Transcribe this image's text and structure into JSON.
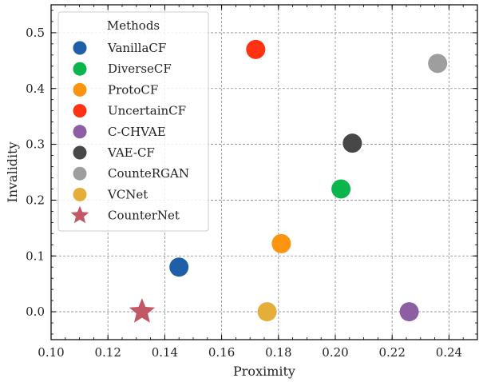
{
  "chart_data": {
    "type": "scatter",
    "title": "",
    "xlabel": "Proximity",
    "ylabel": "Invalidity",
    "xlim": [
      0.1,
      0.25
    ],
    "ylim": [
      -0.05,
      0.55
    ],
    "xticks": [
      0.1,
      0.12,
      0.14,
      0.16,
      0.18,
      0.2,
      0.22,
      0.24
    ],
    "xtick_labels": [
      "0.10",
      "0.12",
      "0.14",
      "0.16",
      "0.18",
      "0.20",
      "0.22",
      "0.24"
    ],
    "yticks": [
      0.0,
      0.1,
      0.2,
      0.3,
      0.4,
      0.5
    ],
    "ytick_labels": [
      "0.0",
      "0.1",
      "0.2",
      "0.3",
      "0.4",
      "0.5"
    ],
    "grid": true,
    "legend": {
      "title": "Methods",
      "placement": "upper-left"
    },
    "series": [
      {
        "name": "VanillaCF",
        "x": 0.145,
        "y": 0.08,
        "color": "#1f5fa8",
        "marker": "circle"
      },
      {
        "name": "DiverseCF",
        "x": 0.202,
        "y": 0.22,
        "color": "#0ab54e",
        "marker": "circle"
      },
      {
        "name": "ProtoCF",
        "x": 0.181,
        "y": 0.122,
        "color": "#fd9410",
        "marker": "circle"
      },
      {
        "name": "UncertainCF",
        "x": 0.172,
        "y": 0.47,
        "color": "#ff3313",
        "marker": "circle"
      },
      {
        "name": "C-CHVAE",
        "x": 0.226,
        "y": 0.0,
        "color": "#8c5fa5",
        "marker": "circle"
      },
      {
        "name": "VAE-CF",
        "x": 0.206,
        "y": 0.302,
        "color": "#474747",
        "marker": "circle"
      },
      {
        "name": "CounteRGAN",
        "x": 0.236,
        "y": 0.445,
        "color": "#9e9e9e",
        "marker": "circle"
      },
      {
        "name": "VCNet",
        "x": 0.176,
        "y": 0.0,
        "color": "#e4ae38",
        "marker": "circle"
      },
      {
        "name": "CounterNet",
        "x": 0.132,
        "y": 0.0,
        "color": "#c25866",
        "marker": "star"
      }
    ]
  }
}
